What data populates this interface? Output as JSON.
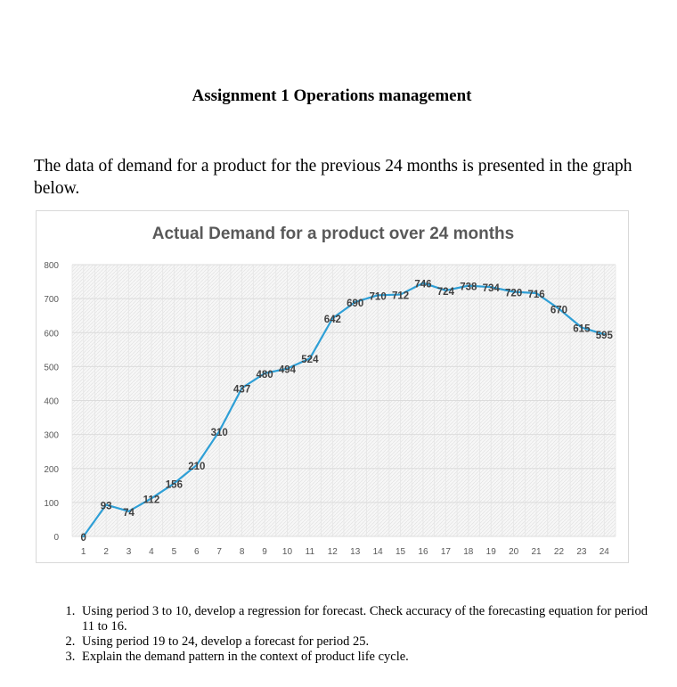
{
  "document": {
    "title": "Assignment 1 Operations management",
    "intro": "The data of demand for a product for the previous 24 months is presented in the graph below.",
    "questions": [
      "Using period 3 to 10, develop a regression for forecast. Check accuracy of the forecasting equation for period 11 to 16.",
      "Using period 19 to 24, develop a forecast for period 25.",
      "Explain the demand pattern in the context of product life cycle."
    ]
  },
  "chart_data": {
    "type": "line",
    "title": "Actual Demand for a product over 24 months",
    "xlabel": "",
    "ylabel": "",
    "categories": [
      "1",
      "2",
      "3",
      "4",
      "5",
      "6",
      "7",
      "8",
      "9",
      "10",
      "11",
      "12",
      "13",
      "14",
      "15",
      "16",
      "17",
      "18",
      "19",
      "20",
      "21",
      "22",
      "23",
      "24"
    ],
    "values": [
      0,
      93,
      74,
      112,
      156,
      210,
      310,
      437,
      480,
      494,
      524,
      642,
      690,
      710,
      712,
      746,
      724,
      738,
      734,
      720,
      716,
      670,
      615,
      595
    ],
    "ylim": [
      0,
      800
    ],
    "yticks": [
      0,
      100,
      200,
      300,
      400,
      500,
      600,
      700,
      800
    ],
    "grid": true,
    "legend": "none",
    "data_labels": true,
    "line_color": "#2e9fd6",
    "title_color": "#595959",
    "axis_text_color": "#595959",
    "label_color": "#404040"
  }
}
